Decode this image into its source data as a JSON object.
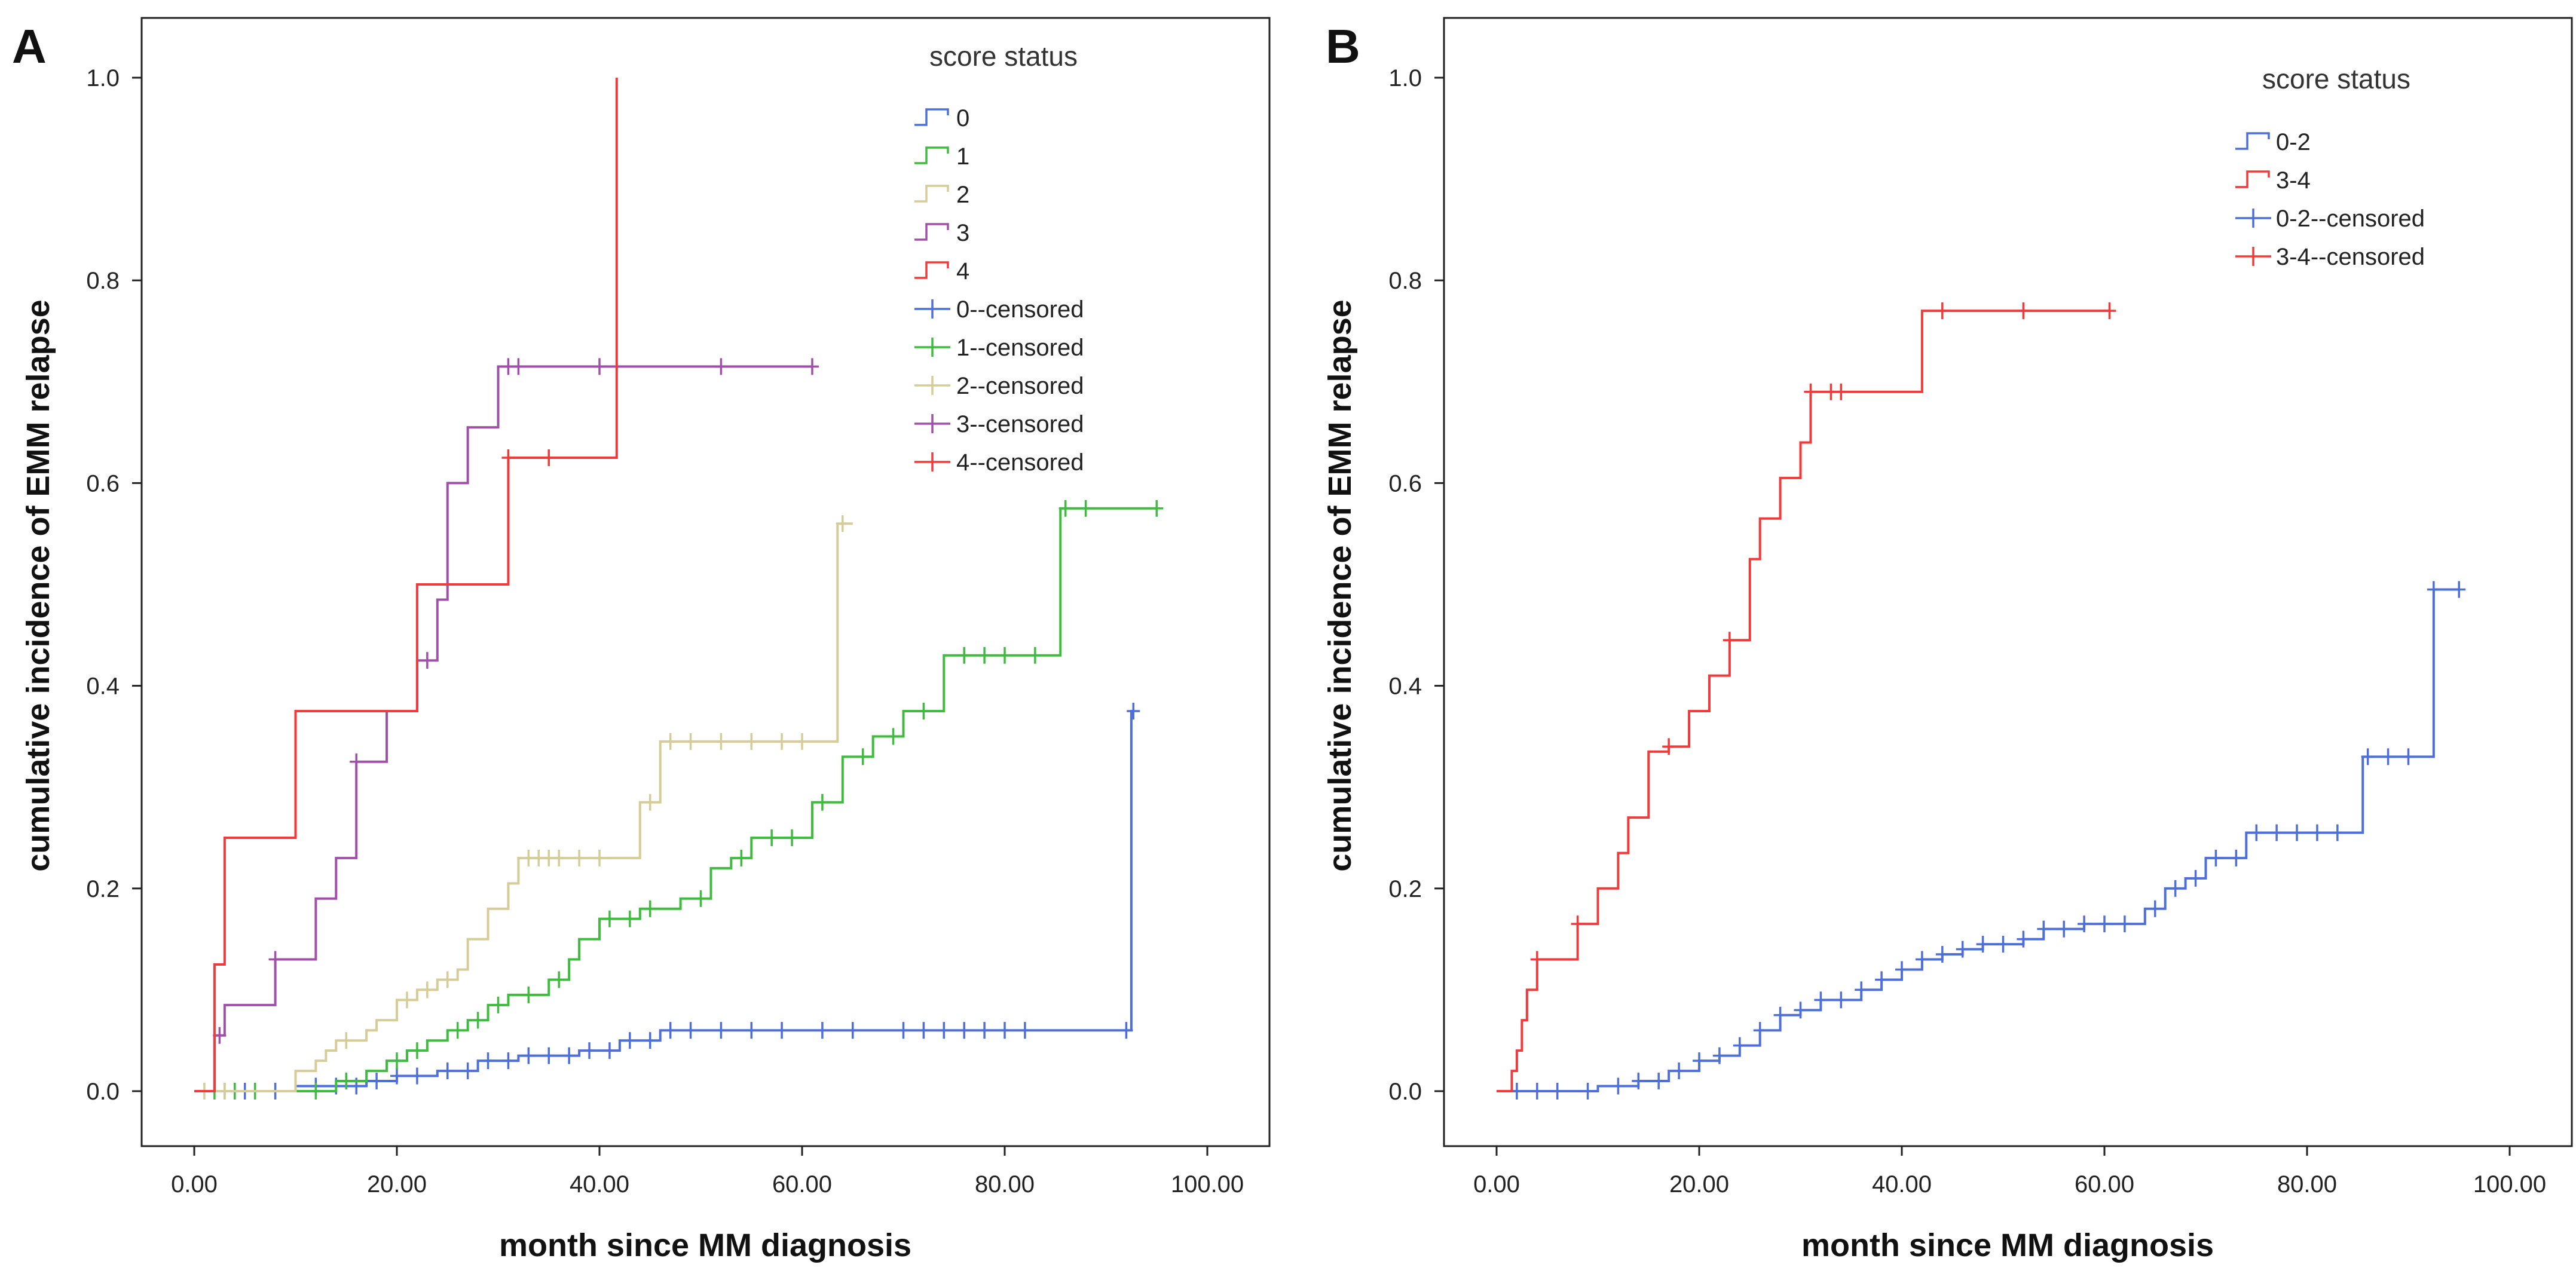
{
  "chart_data": [
    {
      "panel": "A",
      "type": "line",
      "step": true,
      "xlabel": "month since MM diagnosis",
      "ylabel": "cumulative incidence of EMM relapse",
      "xlim": [
        -6,
        106
      ],
      "ylim": [
        -0.05,
        1.06
      ],
      "xticks": [
        0,
        20,
        40,
        60,
        80,
        100
      ],
      "xtick_labels": [
        "0.00",
        "20.00",
        "40.00",
        "60.00",
        "80.00",
        "100.00"
      ],
      "yticks": [
        0,
        0.2,
        0.4,
        0.6,
        0.8,
        1.0
      ],
      "ytick_labels": [
        "0.0",
        "0.2",
        "0.4",
        "0.6",
        "0.8",
        "1.0"
      ],
      "legend": {
        "title": "score status",
        "location": "top-right",
        "entries": [
          {
            "label": "0",
            "color": "#4f6fd8",
            "kind": "step"
          },
          {
            "label": "1",
            "color": "#3fbb3f",
            "kind": "step"
          },
          {
            "label": "2",
            "color": "#d6cc98",
            "kind": "step"
          },
          {
            "label": "3",
            "color": "#a050a8",
            "kind": "step"
          },
          {
            "label": "4",
            "color": "#ee3c3c",
            "kind": "step"
          },
          {
            "label": "0--censored",
            "color": "#4f6fd8",
            "kind": "cross"
          },
          {
            "label": "1--censored",
            "color": "#3fbb3f",
            "kind": "cross"
          },
          {
            "label": "2--censored",
            "color": "#d6cc98",
            "kind": "cross"
          },
          {
            "label": "3--censored",
            "color": "#a050a8",
            "kind": "cross"
          },
          {
            "label": "4--censored",
            "color": "#ee3c3c",
            "kind": "cross"
          }
        ]
      },
      "series": [
        {
          "name": "0",
          "color": "#4f6fd8",
          "x": [
            0,
            10,
            17,
            20,
            24,
            28,
            32,
            38,
            42,
            46,
            92.5,
            92.7
          ],
          "y": [
            0,
            0.005,
            0.01,
            0.015,
            0.02,
            0.03,
            0.035,
            0.04,
            0.05,
            0.06,
            0.375,
            0.375
          ],
          "censored_x": [
            3,
            5,
            8,
            12,
            14,
            16,
            18,
            20,
            22,
            25,
            27,
            29,
            31,
            33,
            35,
            37,
            39,
            41,
            43,
            45,
            47,
            49,
            52,
            55,
            58,
            62,
            65,
            70,
            72,
            74,
            76,
            78,
            80,
            82,
            92,
            92.7
          ]
        },
        {
          "name": "1",
          "color": "#3fbb3f",
          "x": [
            0,
            14,
            17,
            19,
            21,
            23,
            25,
            27,
            29,
            31,
            35,
            37,
            38,
            40,
            44,
            48,
            51,
            53,
            55,
            61,
            64,
            67,
            70,
            74,
            85.5,
            95
          ],
          "y": [
            0,
            0.01,
            0.02,
            0.03,
            0.04,
            0.05,
            0.06,
            0.07,
            0.085,
            0.095,
            0.11,
            0.13,
            0.15,
            0.17,
            0.18,
            0.19,
            0.22,
            0.23,
            0.25,
            0.285,
            0.33,
            0.35,
            0.375,
            0.43,
            0.575,
            0.575
          ],
          "censored_x": [
            2,
            4,
            6,
            12,
            15,
            20,
            22,
            26,
            28,
            30,
            33,
            36,
            41,
            43,
            45,
            50,
            54,
            57,
            59,
            62,
            66,
            69,
            72,
            76,
            78,
            80,
            83,
            86,
            88,
            95
          ]
        },
        {
          "name": "2",
          "color": "#d6cc98",
          "x": [
            0,
            10,
            12,
            13,
            14,
            17,
            18,
            20,
            22,
            24,
            26,
            27,
            29,
            31,
            32,
            44,
            46,
            63.5,
            65
          ],
          "y": [
            0,
            0.02,
            0.03,
            0.04,
            0.05,
            0.06,
            0.07,
            0.09,
            0.1,
            0.11,
            0.12,
            0.15,
            0.18,
            0.205,
            0.23,
            0.285,
            0.345,
            0.56,
            0.56
          ],
          "censored_x": [
            1,
            3,
            15,
            21,
            23,
            25,
            33,
            34,
            35,
            36,
            38,
            40,
            45,
            47,
            49,
            52,
            55,
            58,
            60,
            64
          ]
        },
        {
          "name": "3",
          "color": "#a050a8",
          "x": [
            0,
            2,
            3,
            8,
            12,
            14,
            16,
            19,
            22,
            24,
            25,
            27,
            30,
            61
          ],
          "y": [
            0,
            0.055,
            0.085,
            0.13,
            0.19,
            0.23,
            0.325,
            0.375,
            0.425,
            0.485,
            0.6,
            0.655,
            0.715,
            0.715
          ],
          "censored_x": [
            2.5,
            8,
            16,
            23,
            31,
            32,
            40,
            52,
            61
          ]
        },
        {
          "name": "4",
          "color": "#ee3c3c",
          "x": [
            0,
            2,
            3,
            10,
            22,
            31,
            41.7,
            41.7
          ],
          "y": [
            0,
            0.125,
            0.25,
            0.375,
            0.5,
            0.625,
            0.625,
            1.0
          ],
          "censored_x": [
            31,
            35
          ]
        }
      ]
    },
    {
      "panel": "B",
      "type": "line",
      "step": true,
      "xlabel": "month since MM diagnosis",
      "ylabel": "cumulative incidence of EMM relapse",
      "xlim": [
        -6,
        106
      ],
      "ylim": [
        -0.05,
        1.06
      ],
      "xticks": [
        0,
        20,
        40,
        60,
        80,
        100
      ],
      "xtick_labels": [
        "0.00",
        "20.00",
        "40.00",
        "60.00",
        "80.00",
        "100.00"
      ],
      "yticks": [
        0,
        0.2,
        0.4,
        0.6,
        0.8,
        1.0
      ],
      "ytick_labels": [
        "0.0",
        "0.2",
        "0.4",
        "0.6",
        "0.8",
        "1.0"
      ],
      "legend": {
        "title": "score status",
        "location": "top-right",
        "entries": [
          {
            "label": "0-2",
            "color": "#4f6fd8",
            "kind": "step"
          },
          {
            "label": "3-4",
            "color": "#ee3c3c",
            "kind": "step"
          },
          {
            "label": "0-2--censored",
            "color": "#4f6fd8",
            "kind": "cross"
          },
          {
            "label": "3-4--censored",
            "color": "#ee3c3c",
            "kind": "cross"
          }
        ]
      },
      "series": [
        {
          "name": "0-2",
          "color": "#4f6fd8",
          "x": [
            0,
            10,
            14,
            17,
            20,
            22,
            24,
            26,
            28,
            30,
            32,
            36,
            38,
            40,
            42,
            44,
            46,
            48,
            52,
            54,
            58,
            64,
            66,
            68,
            70,
            74,
            85.5,
            92.5,
            95
          ],
          "y": [
            0,
            0.005,
            0.01,
            0.02,
            0.03,
            0.035,
            0.045,
            0.06,
            0.075,
            0.08,
            0.09,
            0.1,
            0.11,
            0.12,
            0.13,
            0.135,
            0.14,
            0.145,
            0.15,
            0.16,
            0.165,
            0.18,
            0.2,
            0.21,
            0.23,
            0.255,
            0.33,
            0.495,
            0.495
          ],
          "censored_x": [
            2,
            4,
            6,
            9,
            12,
            14,
            16,
            18,
            20,
            22,
            24,
            26,
            28,
            30,
            32,
            34,
            36,
            38,
            40,
            42,
            44,
            46,
            48,
            50,
            52,
            54,
            56,
            58,
            60,
            62,
            65,
            67,
            69,
            71,
            73,
            75,
            77,
            79,
            81,
            83,
            86,
            88,
            90,
            92.5,
            95
          ]
        },
        {
          "name": "3-4",
          "color": "#ee3c3c",
          "x": [
            0,
            1.5,
            2,
            2.5,
            3,
            4,
            8,
            10,
            12,
            13,
            15,
            17,
            19,
            21,
            23,
            25,
            26,
            28,
            30,
            31,
            42,
            44,
            60.5
          ],
          "y": [
            0,
            0.02,
            0.04,
            0.07,
            0.1,
            0.13,
            0.165,
            0.2,
            0.235,
            0.27,
            0.335,
            0.34,
            0.375,
            0.41,
            0.445,
            0.525,
            0.565,
            0.605,
            0.64,
            0.69,
            0.77,
            0.77,
            0.77
          ],
          "censored_x": [
            4,
            8,
            17,
            23,
            31,
            33,
            34,
            44,
            52,
            60.5
          ]
        }
      ]
    }
  ],
  "panel_labels": {
    "a": "A",
    "b": "B"
  },
  "axis_text": {
    "xlabel": "month since MM diagnosis",
    "ylabel": "cumulative incidence of EMM relapse",
    "legend_title": "score status"
  }
}
